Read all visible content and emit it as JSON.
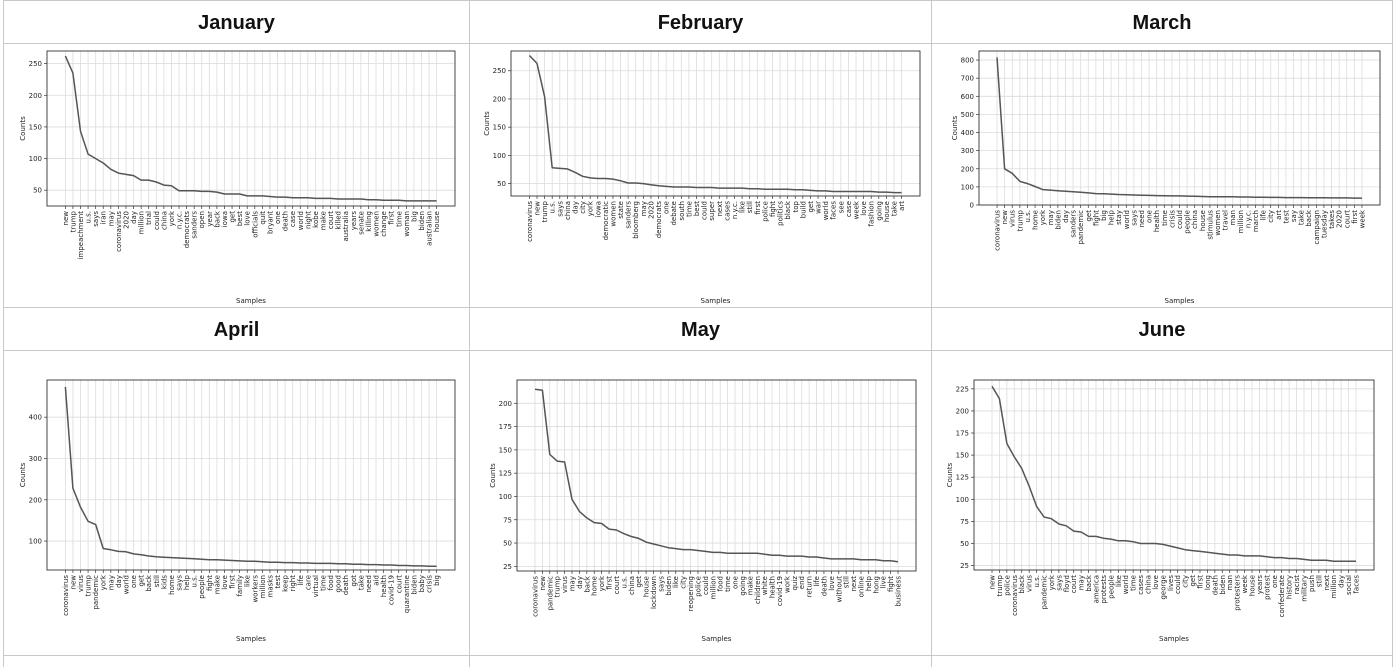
{
  "chart_data": [
    {
      "type": "line",
      "title": "January",
      "xlabel": "Samples",
      "ylabel": "Counts",
      "ylim": [
        25,
        270
      ],
      "yticks": [
        50,
        100,
        150,
        200,
        250
      ],
      "grid": true,
      "categories": [
        "new",
        "trump",
        "impeachment",
        "u.s.",
        "says",
        "iran",
        "may",
        "coronavirus",
        "2020",
        "day",
        "million",
        "trial",
        "could",
        "china",
        "york",
        "n.y.c.",
        "democrats",
        "sanders",
        "open",
        "year",
        "back",
        "iowa",
        "get",
        "best",
        "love",
        "officials",
        "quit",
        "bryant",
        "one",
        "death",
        "case",
        "world",
        "night",
        "kobe",
        "make",
        "court",
        "killed",
        "australia",
        "years",
        "senate",
        "killing",
        "women",
        "change",
        "first",
        "time",
        "woman",
        "big",
        "biden",
        "australian",
        "house"
      ],
      "values": [
        262,
        235,
        143,
        107,
        100,
        93,
        83,
        77,
        75,
        73,
        66,
        66,
        63,
        58,
        57,
        49,
        49,
        49,
        48,
        48,
        47,
        44,
        44,
        44,
        41,
        41,
        41,
        40,
        39,
        39,
        38,
        38,
        38,
        37,
        37,
        37,
        36,
        36,
        36,
        36,
        35,
        35,
        34,
        34,
        34,
        33,
        33,
        33,
        33,
        33
      ]
    },
    {
      "type": "line",
      "title": "February",
      "xlabel": "Samples",
      "ylabel": "Counts",
      "ylim": [
        28,
        285
      ],
      "yticks": [
        50,
        100,
        150,
        200,
        250
      ],
      "grid": true,
      "categories": [
        "coronavirus",
        "new",
        "trump",
        "u.s.",
        "says",
        "china",
        "day",
        "city",
        "york",
        "iowa",
        "democratic",
        "women",
        "state",
        "sanders",
        "bloomberg",
        "may",
        "2020",
        "democrats",
        "one",
        "debate",
        "south",
        "time",
        "best",
        "could",
        "super",
        "next",
        "cases",
        "n.y.c.",
        "like",
        "still",
        "first",
        "police",
        "fight",
        "politics",
        "black",
        "top",
        "build",
        "get",
        "war",
        "world",
        "faces",
        "see",
        "case",
        "week",
        "love",
        "fashion",
        "going",
        "house",
        "take",
        "art"
      ],
      "values": [
        277,
        263,
        204,
        78,
        77,
        76,
        70,
        63,
        60,
        59,
        59,
        58,
        55,
        51,
        51,
        50,
        48,
        46,
        45,
        44,
        44,
        44,
        43,
        43,
        43,
        42,
        42,
        42,
        42,
        41,
        41,
        40,
        40,
        40,
        40,
        39,
        39,
        38,
        37,
        37,
        36,
        36,
        36,
        36,
        36,
        36,
        35,
        35,
        34,
        34
      ]
    },
    {
      "type": "line",
      "title": "March",
      "xlabel": "Samples",
      "ylabel": "Counts",
      "ylim": [
        0,
        850
      ],
      "yticks": [
        0,
        100,
        200,
        300,
        400,
        500,
        600,
        700,
        800
      ],
      "grid": true,
      "categories": [
        "coronavirus",
        "new",
        "virus",
        "trump",
        "u.s.",
        "home",
        "york",
        "may",
        "biden",
        "day",
        "sanders",
        "pandemic",
        "get",
        "fight",
        "big",
        "help",
        "stay",
        "world",
        "says",
        "need",
        "one",
        "health",
        "time",
        "crisis",
        "could",
        "people",
        "china",
        "house",
        "stimulus",
        "women",
        "travel",
        "man",
        "million",
        "n.y.c.",
        "march",
        "life",
        "city",
        "art",
        "test",
        "say",
        "take",
        "back",
        "campaign",
        "tuesday",
        "takes",
        "2020",
        "court",
        "first",
        "week"
      ],
      "values": [
        815,
        200,
        175,
        130,
        118,
        102,
        85,
        82,
        79,
        76,
        73,
        70,
        67,
        63,
        62,
        60,
        58,
        57,
        55,
        54,
        53,
        52,
        51,
        50,
        50,
        49,
        48,
        47,
        46,
        46,
        45,
        45,
        44,
        44,
        43,
        43,
        42,
        42,
        41,
        41,
        41,
        40,
        40,
        40,
        39,
        39,
        39,
        38,
        38
      ]
    },
    {
      "type": "line",
      "title": "April",
      "xlabel": "Samples",
      "ylabel": "Counts",
      "ylim": [
        30,
        490
      ],
      "yticks": [
        100,
        200,
        300,
        400
      ],
      "grid": true,
      "categories": [
        "coronavirus",
        "new",
        "virus",
        "trump",
        "pandemic",
        "york",
        "may",
        "day",
        "world",
        "one",
        "get",
        "back",
        "still",
        "kids",
        "home",
        "says",
        "help",
        "u.s.",
        "people",
        "fight",
        "make",
        "love",
        "first",
        "family",
        "like",
        "workers",
        "million",
        "masks",
        "test",
        "keep",
        "right",
        "life",
        "care",
        "virtual",
        "time",
        "food",
        "good",
        "death",
        "got",
        "take",
        "need",
        "aid",
        "health",
        "covid-19",
        "court",
        "quarantine",
        "biden",
        "baby",
        "crisis",
        "big"
      ],
      "values": [
        473,
        228,
        182,
        148,
        140,
        82,
        79,
        75,
        74,
        69,
        67,
        64,
        62,
        61,
        60,
        59,
        58,
        57,
        56,
        55,
        55,
        54,
        53,
        52,
        51,
        51,
        50,
        49,
        49,
        48,
        48,
        47,
        47,
        46,
        46,
        46,
        45,
        45,
        44,
        44,
        43,
        43,
        42,
        42,
        41,
        41,
        40,
        40,
        39,
        39
      ]
    },
    {
      "type": "line",
      "title": "May",
      "xlabel": "Samples",
      "ylabel": "Counts",
      "ylim": [
        20,
        225
      ],
      "yticks": [
        25,
        50,
        75,
        100,
        125,
        150,
        175,
        200
      ],
      "grid": true,
      "categories": [
        "coronavirus",
        "new",
        "pandemic",
        "trump",
        "virus",
        "may",
        "day",
        "back",
        "home",
        "york",
        "first",
        "court",
        "u.s.",
        "china",
        "get",
        "house",
        "lockdown",
        "says",
        "biden",
        "like",
        "city",
        "reopening",
        "police",
        "could",
        "million",
        "food",
        "time",
        "one",
        "going",
        "make",
        "children",
        "white",
        "health",
        "covid-19",
        "work",
        "quiz",
        "end",
        "return",
        "life",
        "death",
        "love",
        "without",
        "still",
        "next",
        "online",
        "help",
        "hong",
        "live",
        "fight",
        "business"
      ],
      "values": [
        215,
        214,
        145,
        138,
        137,
        97,
        84,
        77,
        72,
        71,
        65,
        64,
        60,
        57,
        55,
        51,
        49,
        47,
        45,
        44,
        43,
        43,
        42,
        41,
        40,
        40,
        39,
        39,
        39,
        39,
        39,
        38,
        37,
        37,
        36,
        36,
        36,
        35,
        35,
        34,
        33,
        33,
        33,
        33,
        32,
        32,
        32,
        31,
        31,
        30
      ]
    },
    {
      "type": "line",
      "title": "June",
      "xlabel": "Samples",
      "ylabel": "Counts",
      "ylim": [
        20,
        235
      ],
      "yticks": [
        25,
        50,
        75,
        100,
        125,
        150,
        175,
        200,
        225
      ],
      "grid": true,
      "categories": [
        "new",
        "trump",
        "police",
        "coronavirus",
        "black",
        "virus",
        "u.s.",
        "pandemic",
        "york",
        "says",
        "floyd",
        "court",
        "may",
        "back",
        "america",
        "protests",
        "people",
        "like",
        "world",
        "time",
        "cases",
        "china",
        "love",
        "george",
        "lives",
        "could",
        "city",
        "get",
        "first",
        "long",
        "death",
        "biden",
        "man",
        "protesters",
        "week",
        "house",
        "years",
        "protest",
        "one",
        "confederate",
        "history",
        "racist",
        "military",
        "push",
        "still",
        "next",
        "million",
        "day",
        "social",
        "faces"
      ],
      "values": [
        228,
        214,
        163,
        148,
        135,
        115,
        92,
        80,
        78,
        72,
        70,
        64,
        63,
        58,
        58,
        56,
        55,
        53,
        53,
        52,
        50,
        50,
        50,
        49,
        47,
        45,
        43,
        42,
        41,
        40,
        39,
        38,
        37,
        37,
        36,
        36,
        36,
        35,
        34,
        34,
        33,
        33,
        32,
        31,
        31,
        31,
        30,
        30,
        30,
        30
      ]
    }
  ]
}
